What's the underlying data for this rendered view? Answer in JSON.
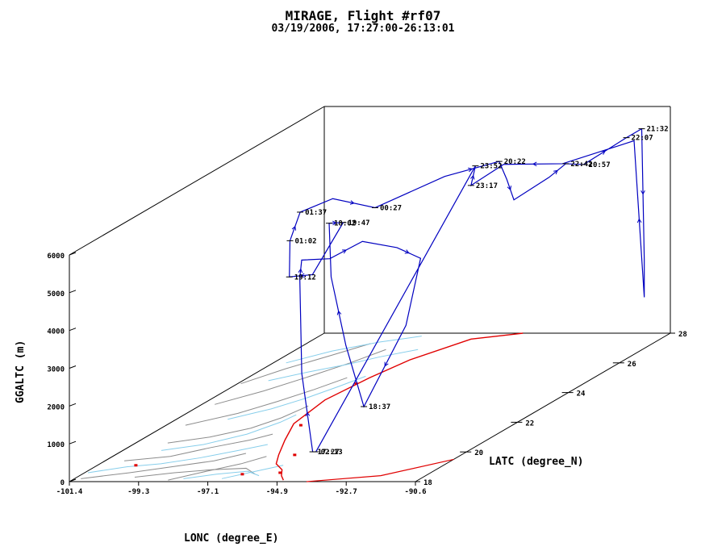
{
  "title": "MIRAGE, Flight #rf07",
  "subtitle": "03/19/2006, 17:27:00-26:13:01",
  "chart_data": {
    "type": "line",
    "projection": "3d-oblique",
    "x_axis": {
      "label": "LONC (degree_E)",
      "range": [
        -101.4,
        -90.6
      ],
      "ticks": [
        "-101.4",
        "-99.3",
        "-97.1",
        "-94.9",
        "-92.7",
        "-90.6"
      ]
    },
    "y_axis": {
      "label": "LATC (degree_N)",
      "range": [
        18,
        28
      ],
      "ticks": [
        "18",
        "20",
        "22",
        "24",
        "26",
        "28"
      ]
    },
    "z_axis": {
      "label": "GGALTC (m)",
      "range": [
        0,
        6000
      ],
      "ticks": [
        "0",
        "1000",
        "2000",
        "3000",
        "4000",
        "5000",
        "6000"
      ]
    },
    "colors": {
      "track": "#0000c0",
      "coast": "#e00000",
      "rivers": "#87ceeb",
      "borders": "#8c8c8c",
      "frame": "#000000"
    },
    "series": [
      {
        "points": [
          {
            "lon": -95.0,
            "lat": 19.5,
            "alt": 200,
            "time": "17:27"
          },
          {
            "lon": -95.5,
            "lat": 19.7,
            "alt": 2200
          },
          {
            "lon": -95.8,
            "lat": 20.0,
            "alt": 4600
          },
          {
            "lon": -95.9,
            "lat": 20.2,
            "alt": 5000
          },
          {
            "lon": -95.5,
            "lat": 20.8,
            "alt": 4800
          },
          {
            "lon": -94.8,
            "lat": 21.2,
            "alt": 5100
          },
          {
            "lon": -94.2,
            "lat": 21.8,
            "alt": 4700
          },
          {
            "lon": -93.7,
            "lat": 22.1,
            "alt": 4300
          },
          {
            "lon": -93.6,
            "lat": 21.4,
            "alt": 2800
          },
          {
            "lon": -93.8,
            "lat": 20.0,
            "alt": 1200,
            "time": "18:37"
          },
          {
            "lon": -94.6,
            "lat": 20.3,
            "alt": 2700
          },
          {
            "lon": -95.3,
            "lat": 20.6,
            "alt": 4400
          },
          {
            "lon": -95.6,
            "lat": 20.9,
            "alt": 5700,
            "time": "18:02"
          },
          {
            "lon": -95.4,
            "lat": 21.2,
            "alt": 5600,
            "time": "19:47"
          },
          {
            "lon": -96.2,
            "lat": 21.0,
            "alt": 4300
          },
          {
            "lon": -97.0,
            "lat": 21.1,
            "alt": 4200,
            "time": "19:12"
          },
          {
            "lon": -97.3,
            "lat": 21.5,
            "alt": 5000,
            "time": "01:02"
          },
          {
            "lon": -97.3,
            "lat": 21.9,
            "alt": 5600,
            "time": "01:37"
          },
          {
            "lon": -96.6,
            "lat": 22.3,
            "alt": 5800
          },
          {
            "lon": -95.2,
            "lat": 22.2,
            "alt": 5600,
            "time": "00:27"
          },
          {
            "lon": -94.3,
            "lat": 23.8,
            "alt": 5800
          },
          {
            "lon": -93.0,
            "lat": 24.3,
            "alt": 6000,
            "time": "20:22"
          },
          {
            "lon": -92.6,
            "lat": 24.1,
            "alt": 5600
          },
          {
            "lon": -92.3,
            "lat": 24.0,
            "alt": 5100
          },
          {
            "lon": -91.6,
            "lat": 24.5,
            "alt": 5500
          },
          {
            "lon": -91.0,
            "lat": 24.4,
            "alt": 5900,
            "time": "22:42"
          },
          {
            "lon": -90.6,
            "lat": 24.6,
            "alt": 5800,
            "time": "20:57"
          },
          {
            "lon": -90.3,
            "lat": 25.9,
            "alt": 6000,
            "time": "22:07"
          },
          {
            "lon": -90.3,
            "lat": 26.5,
            "alt": 6000,
            "time": "21:32"
          },
          {
            "lon": -90.3,
            "lat": 26.6,
            "alt": 2500
          },
          {
            "lon": -90.3,
            "lat": 26.6,
            "alt": 1500
          },
          {
            "lon": -90.3,
            "lat": 26.2,
            "alt": 5800
          },
          {
            "lon": -91.1,
            "lat": 24.4,
            "alt": 5900
          },
          {
            "lon": -92.7,
            "lat": 24.1,
            "alt": 6000
          },
          {
            "lon": -93.4,
            "lat": 23.7,
            "alt": 5600,
            "time": "23:17"
          },
          {
            "lon": -93.5,
            "lat": 24.0,
            "alt": 6000,
            "time": "23:52"
          },
          {
            "lon": -94.9,
            "lat": 19.5,
            "alt": 200,
            "time": "02:13"
          }
        ]
      }
    ],
    "time_labels": [
      {
        "time": "21:32",
        "lon": -90.3,
        "lat": 26.5,
        "alt": 6000
      },
      {
        "time": "22:07",
        "lon": -90.3,
        "lat": 25.9,
        "alt": 6000
      },
      {
        "time": "20:57",
        "lon": -90.6,
        "lat": 24.6,
        "alt": 5800
      },
      {
        "time": "22:42",
        "lon": -91.0,
        "lat": 24.4,
        "alt": 5900
      },
      {
        "time": "20:22",
        "lon": -93.0,
        "lat": 24.3,
        "alt": 6000
      },
      {
        "time": "23:52",
        "lon": -93.5,
        "lat": 24.0,
        "alt": 6000
      },
      {
        "time": "23:17",
        "lon": -93.4,
        "lat": 23.7,
        "alt": 5600
      },
      {
        "time": "18:02",
        "lon": -95.6,
        "lat": 20.9,
        "alt": 5700
      },
      {
        "time": "19:47",
        "lon": -95.4,
        "lat": 21.2,
        "alt": 5600
      },
      {
        "time": "00:27",
        "lon": -95.2,
        "lat": 22.2,
        "alt": 5600
      },
      {
        "time": "01:37",
        "lon": -97.3,
        "lat": 21.9,
        "alt": 5600
      },
      {
        "time": "01:02",
        "lon": -97.3,
        "lat": 21.5,
        "alt": 5000
      },
      {
        "time": "19:12",
        "lon": -97.0,
        "lat": 21.1,
        "alt": 4200
      },
      {
        "time": "18:37",
        "lon": -93.8,
        "lat": 20.0,
        "alt": 1200
      },
      {
        "time": "17:27",
        "lon": -95.0,
        "lat": 19.5,
        "alt": 200
      },
      {
        "time": "02:13",
        "lon": -94.9,
        "lat": 19.5,
        "alt": 200
      }
    ],
    "coastline": [
      {
        "lon": -94.0,
        "lat": 18.0
      },
      {
        "lon": -92.0,
        "lat": 18.4
      },
      {
        "lon": -90.6,
        "lat": 19.5
      },
      {
        "lon": -94.8,
        "lat": 18.1
      },
      {
        "lon": -95.1,
        "lat": 18.4
      },
      {
        "lon": -95.4,
        "lat": 18.8
      },
      {
        "lon": -95.9,
        "lat": 19.2
      },
      {
        "lon": -96.3,
        "lat": 19.8
      },
      {
        "lon": -96.9,
        "lat": 20.8
      },
      {
        "lon": -97.5,
        "lat": 21.9
      },
      {
        "lon": -97.8,
        "lat": 23.5
      },
      {
        "lon": -97.6,
        "lat": 25.0
      },
      {
        "lon": -97.3,
        "lat": 26.2
      },
      {
        "lon": -96.5,
        "lat": 27.6
      },
      {
        "lon": -95.2,
        "lat": 28.0
      }
    ]
  }
}
